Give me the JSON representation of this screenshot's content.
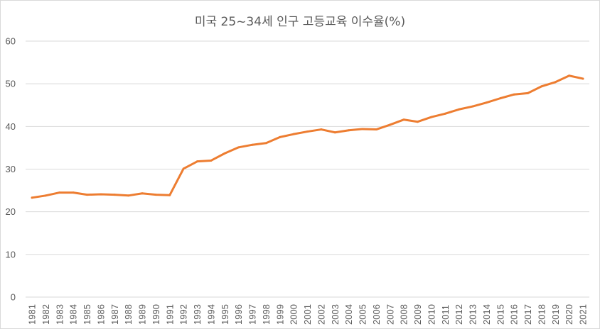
{
  "chart_data": {
    "type": "line",
    "title": "미국 25~34세 인구 고등교육 이수율(%)",
    "xlabel": "",
    "ylabel": "",
    "ylim": [
      0,
      60
    ],
    "yticks": [
      0,
      10,
      20,
      30,
      40,
      50,
      60
    ],
    "grid": true,
    "line_color": "#ed7d31",
    "categories": [
      "1981",
      "1982",
      "1983",
      "1984",
      "1985",
      "1986",
      "1987",
      "1988",
      "1989",
      "1990",
      "1991",
      "1992",
      "1993",
      "1994",
      "1995",
      "1996",
      "1997",
      "1998",
      "1999",
      "2000",
      "2001",
      "2002",
      "2003",
      "2004",
      "2005",
      "2006",
      "2007",
      "2008",
      "2009",
      "2010",
      "2011",
      "2012",
      "2013",
      "2014",
      "2015",
      "2016",
      "2017",
      "2018",
      "2019",
      "2020",
      "2021"
    ],
    "series": [
      {
        "values": [
          23.3,
          23.8,
          24.5,
          24.5,
          24.0,
          24.1,
          24.0,
          23.8,
          24.3,
          24.0,
          23.9,
          30.1,
          31.8,
          32.0,
          33.7,
          35.1,
          35.7,
          36.1,
          37.5,
          38.2,
          38.8,
          39.3,
          38.6,
          39.1,
          39.4,
          39.3,
          40.4,
          41.6,
          41.1,
          42.2,
          43.0,
          44.0,
          44.7,
          45.6,
          46.6,
          47.5,
          47.8,
          49.4,
          50.4,
          51.9,
          51.2
        ]
      }
    ]
  }
}
